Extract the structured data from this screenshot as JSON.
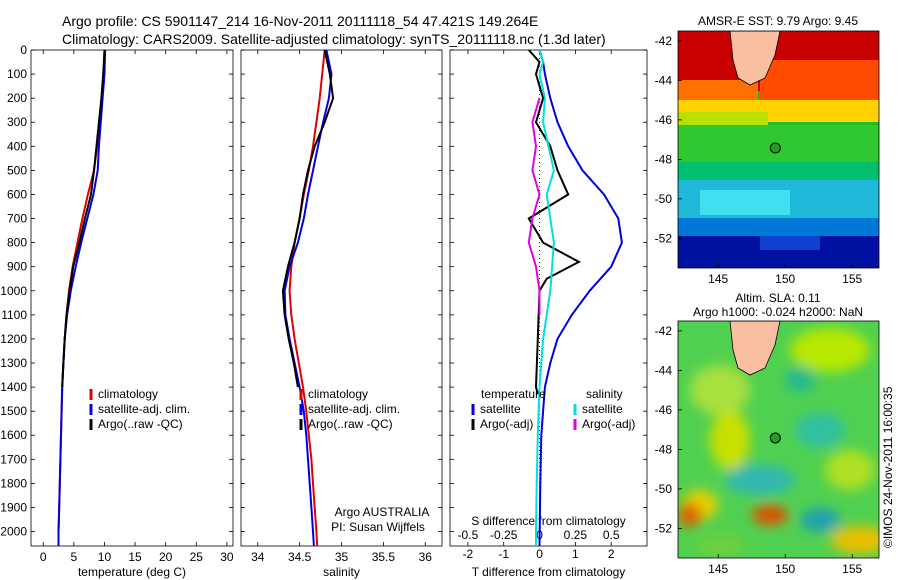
{
  "header": {
    "line1": "Argo profile: CS 5901147_214 16-Nov-2011 20111118_54 47.421S 149.264E",
    "line2": "Climatology: CARS2009. Satellite-adjusted climatology: synTS_20111118.nc (1.3d later)"
  },
  "colors": {
    "climatology": "#e00000",
    "satellite": "#0000e0",
    "argo": "#000000",
    "sal_sat": "#00e0e0",
    "sal_argo": "#e000e0"
  },
  "chart_data": [
    {
      "type": "line",
      "xlabel": "temperature (deg C)",
      "ylabel": "",
      "xlim": [
        -2,
        31
      ],
      "ylim": [
        2060,
        0
      ],
      "xticks": [
        0,
        5,
        10,
        15,
        20,
        25,
        30
      ],
      "yticks": [
        0,
        100,
        200,
        300,
        400,
        500,
        600,
        700,
        800,
        900,
        1000,
        1100,
        1200,
        1300,
        1400,
        1500,
        1600,
        1700,
        1800,
        1900,
        2000
      ],
      "legend": [
        "climatology",
        "satellite-adj. clim.",
        "Argo(..raw -QC)"
      ],
      "series": [
        {
          "name": "climatology",
          "color": "#e00000",
          "points": [
            [
              10,
              0
            ],
            [
              9.9,
              100
            ],
            [
              9.6,
              200
            ],
            [
              9.2,
              300
            ],
            [
              8.8,
              400
            ],
            [
              8.3,
              500
            ],
            [
              7.3,
              600
            ],
            [
              6.4,
              700
            ],
            [
              5.6,
              800
            ],
            [
              4.8,
              900
            ],
            [
              4.2,
              1000
            ],
            [
              3.8,
              1100
            ],
            [
              3.5,
              1200
            ],
            [
              3.3,
              1300
            ],
            [
              3.1,
              1400
            ],
            [
              3.0,
              1500
            ],
            [
              2.9,
              1600
            ],
            [
              2.8,
              1700
            ],
            [
              2.7,
              1800
            ],
            [
              2.6,
              1900
            ],
            [
              2.5,
              2000
            ],
            [
              2.5,
              2060
            ]
          ]
        },
        {
          "name": "satellite-adj. clim.",
          "color": "#0000e0",
          "points": [
            [
              10.1,
              0
            ],
            [
              10.0,
              100
            ],
            [
              9.7,
              200
            ],
            [
              9.4,
              300
            ],
            [
              9.1,
              400
            ],
            [
              8.9,
              500
            ],
            [
              8.2,
              600
            ],
            [
              7.2,
              700
            ],
            [
              6.2,
              800
            ],
            [
              5.3,
              900
            ],
            [
              4.5,
              1000
            ],
            [
              3.9,
              1100
            ],
            [
              3.5,
              1200
            ],
            [
              3.3,
              1300
            ],
            [
              3.1,
              1400
            ],
            [
              3.0,
              1500
            ],
            [
              2.9,
              1600
            ],
            [
              2.8,
              1700
            ],
            [
              2.7,
              1800
            ],
            [
              2.6,
              1900
            ],
            [
              2.5,
              2000
            ],
            [
              2.5,
              2060
            ]
          ]
        },
        {
          "name": "Argo(..raw -QC)",
          "color": "#000000",
          "points": [
            [
              10.0,
              0
            ],
            [
              9.8,
              100
            ],
            [
              9.5,
              200
            ],
            [
              9.1,
              300
            ],
            [
              8.7,
              400
            ],
            [
              8.3,
              500
            ],
            [
              7.8,
              600
            ],
            [
              6.8,
              700
            ],
            [
              5.9,
              800
            ],
            [
              4.9,
              900
            ],
            [
              4.3,
              1000
            ],
            [
              3.8,
              1100
            ],
            [
              3.5,
              1200
            ],
            [
              3.3,
              1300
            ],
            [
              3.1,
              1400
            ]
          ]
        }
      ]
    },
    {
      "type": "line",
      "xlabel": "salinity",
      "ylabel": "",
      "xlim": [
        33.8,
        36.2
      ],
      "ylim": [
        2060,
        0
      ],
      "xticks": [
        34,
        34.5,
        35,
        35.5,
        36
      ],
      "legend": [
        "climatology",
        "satellite-adj. clim.",
        "Argo(..raw -QC)"
      ],
      "annotations": [
        "Argo AUSTRALIA",
        "PI: Susan Wijffels"
      ],
      "series": [
        {
          "name": "climatology",
          "color": "#e00000",
          "points": [
            [
              34.8,
              0
            ],
            [
              34.77,
              100
            ],
            [
              34.74,
              200
            ],
            [
              34.7,
              300
            ],
            [
              34.66,
              400
            ],
            [
              34.61,
              500
            ],
            [
              34.55,
              600
            ],
            [
              34.5,
              700
            ],
            [
              34.44,
              800
            ],
            [
              34.4,
              900
            ],
            [
              34.38,
              1000
            ],
            [
              34.4,
              1100
            ],
            [
              34.44,
              1200
            ],
            [
              34.49,
              1300
            ],
            [
              34.54,
              1400
            ],
            [
              34.58,
              1500
            ],
            [
              34.61,
              1600
            ],
            [
              34.64,
              1700
            ],
            [
              34.66,
              1800
            ],
            [
              34.68,
              1900
            ],
            [
              34.7,
              2000
            ],
            [
              34.71,
              2060
            ]
          ]
        },
        {
          "name": "satellite-adj. clim.",
          "color": "#0000e0",
          "points": [
            [
              34.82,
              0
            ],
            [
              34.88,
              100
            ],
            [
              34.85,
              200
            ],
            [
              34.78,
              300
            ],
            [
              34.72,
              400
            ],
            [
              34.66,
              500
            ],
            [
              34.6,
              600
            ],
            [
              34.55,
              700
            ],
            [
              34.48,
              800
            ],
            [
              34.38,
              900
            ],
            [
              34.32,
              1000
            ],
            [
              34.33,
              1100
            ],
            [
              34.38,
              1200
            ],
            [
              34.44,
              1300
            ],
            [
              34.5,
              1400
            ],
            [
              34.55,
              1500
            ],
            [
              34.58,
              1600
            ],
            [
              34.6,
              1700
            ],
            [
              34.62,
              1800
            ],
            [
              34.64,
              1900
            ],
            [
              34.66,
              2000
            ],
            [
              34.67,
              2060
            ]
          ]
        },
        {
          "name": "Argo(..raw -QC)",
          "color": "#000000",
          "points": [
            [
              34.8,
              0
            ],
            [
              34.86,
              100
            ],
            [
              34.9,
              200
            ],
            [
              34.8,
              300
            ],
            [
              34.68,
              400
            ],
            [
              34.6,
              500
            ],
            [
              34.54,
              600
            ],
            [
              34.5,
              700
            ],
            [
              34.44,
              800
            ],
            [
              34.36,
              900
            ],
            [
              34.3,
              1000
            ],
            [
              34.32,
              1100
            ],
            [
              34.37,
              1200
            ],
            [
              34.43,
              1300
            ],
            [
              34.48,
              1400
            ]
          ]
        }
      ]
    },
    {
      "type": "line",
      "xlabel": "T difference from climatology",
      "xlabel2": "S difference from climatology",
      "xlim": [
        -2.5,
        3.0
      ],
      "ylim": [
        2060,
        0
      ],
      "xticks": [
        -2,
        -1,
        0,
        1,
        2
      ],
      "xticks2": [
        "-0.5",
        "-0.25",
        "0",
        "0.25",
        "0.5"
      ],
      "legend_headers": [
        "temperature",
        "salinity"
      ],
      "legend": [
        "satellite",
        "Argo(-adj)",
        "satellite",
        "Argo(-adj)"
      ],
      "series": [
        {
          "name": "satellite",
          "color": "#0000e0",
          "points": [
            [
              0.0,
              0
            ],
            [
              0.1,
              50
            ],
            [
              0.15,
              100
            ],
            [
              0.3,
              200
            ],
            [
              0.5,
              300
            ],
            [
              0.8,
              400
            ],
            [
              1.2,
              500
            ],
            [
              1.8,
              600
            ],
            [
              2.2,
              700
            ],
            [
              2.3,
              800
            ],
            [
              2.0,
              900
            ],
            [
              1.4,
              1000
            ],
            [
              0.9,
              1100
            ],
            [
              0.5,
              1200
            ],
            [
              0.3,
              1300
            ],
            [
              0.15,
              1400
            ],
            [
              0.1,
              1500
            ],
            [
              0.05,
              1600
            ],
            [
              0.02,
              1800
            ],
            [
              0.0,
              2060
            ]
          ]
        },
        {
          "name": "Argo(-adj)",
          "color": "#000000",
          "points": [
            [
              -0.3,
              0
            ],
            [
              0.0,
              50
            ],
            [
              -0.1,
              100
            ],
            [
              0.1,
              200
            ],
            [
              -0.1,
              300
            ],
            [
              0.3,
              400
            ],
            [
              0.5,
              500
            ],
            [
              0.8,
              600
            ],
            [
              -0.3,
              700
            ],
            [
              0.1,
              800
            ],
            [
              1.1,
              880
            ],
            [
              0.2,
              950
            ],
            [
              0.0,
              1000
            ],
            [
              -0.05,
              1200
            ],
            [
              -0.1,
              1400
            ],
            [
              -0.05,
              1430
            ]
          ]
        },
        {
          "name": "satellite",
          "color": "#00e0e0",
          "points": [
            [
              0.0,
              0
            ],
            [
              0.1,
              50
            ],
            [
              0.0,
              100
            ],
            [
              0.15,
              200
            ],
            [
              0.1,
              300
            ],
            [
              0.25,
              400
            ],
            [
              0.4,
              500
            ],
            [
              0.2,
              600
            ],
            [
              0.3,
              700
            ],
            [
              0.4,
              800
            ],
            [
              0.35,
              900
            ],
            [
              0.3,
              1000
            ],
            [
              0.2,
              1100
            ],
            [
              0.1,
              1200
            ],
            [
              0.05,
              1300
            ],
            [
              0.0,
              1400
            ],
            [
              -0.05,
              1600
            ],
            [
              -0.08,
              1800
            ],
            [
              -0.1,
              2000
            ],
            [
              -0.1,
              2060
            ]
          ]
        },
        {
          "name": "Argo(-adj)",
          "color": "#e000e0",
          "points": [
            [
              0.0,
              200
            ],
            [
              -0.2,
              300
            ],
            [
              -0.1,
              400
            ],
            [
              -0.2,
              500
            ],
            [
              0.0,
              600
            ],
            [
              -0.2,
              700
            ],
            [
              -0.3,
              800
            ],
            [
              -0.1,
              900
            ],
            [
              0.0,
              1000
            ],
            [
              0.0,
              1100
            ]
          ]
        }
      ]
    },
    {
      "type": "heatmap",
      "title": "AMSR-E SST: 9.79  Argo: 9.45",
      "xticks": [
        145,
        150,
        155
      ],
      "yticks": [
        -42,
        -44,
        -46,
        -48,
        -50,
        -52
      ],
      "xlim": [
        142,
        157
      ],
      "ylim": [
        -53.5,
        -41.5
      ],
      "marker": {
        "lon": 149.264,
        "lat": -47.421
      }
    },
    {
      "type": "heatmap",
      "title": "Altim. SLA: 0.11",
      "subtitle": "Argo h1000: -0.024 h2000: NaN",
      "xticks": [
        145,
        150,
        155
      ],
      "yticks": [
        -42,
        -44,
        -46,
        -48,
        -50,
        -52
      ],
      "xlim": [
        142,
        157
      ],
      "ylim": [
        -53.5,
        -41.5
      ],
      "marker": {
        "lon": 149.264,
        "lat": -47.421
      }
    }
  ],
  "credit": "©IMOS 24-Nov-2011 16:00:35"
}
